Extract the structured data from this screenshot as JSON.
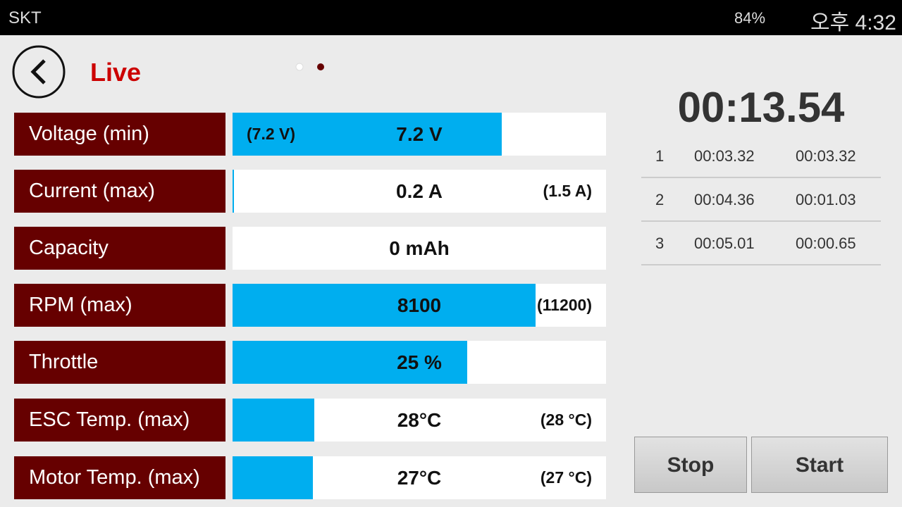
{
  "status_bar": {
    "carrier": "SKT",
    "battery": "84%",
    "time": "오후 4:32"
  },
  "header": {
    "title": "Live"
  },
  "rows": [
    {
      "label": "Voltage (min)",
      "value": "7.2 V",
      "extreme": "(7.2 V)"
    },
    {
      "label": "Current (max)",
      "value": "0.2 A",
      "extreme": "(1.5 A)"
    },
    {
      "label": "Capacity",
      "value": "0 mAh"
    },
    {
      "label": "RPM (max)",
      "value": "8100",
      "extreme": "(11200)"
    },
    {
      "label": "Throttle",
      "value": "25 %"
    },
    {
      "label": "ESC Temp. (max)",
      "value": "28°C",
      "extreme": "(28 °C)"
    },
    {
      "label": "Motor Temp. (max)",
      "value": "27°C",
      "extreme": "(27 °C)"
    }
  ],
  "timer": {
    "elapsed": "00:13.54",
    "laps": [
      [
        "1",
        "00:03.32",
        "00:03.32"
      ],
      [
        "2",
        "00:04.36",
        "00:01.03"
      ],
      [
        "3",
        "00:05.01",
        "00:00.65"
      ]
    ]
  },
  "buttons": {
    "stop": "Stop",
    "start": "Start"
  }
}
